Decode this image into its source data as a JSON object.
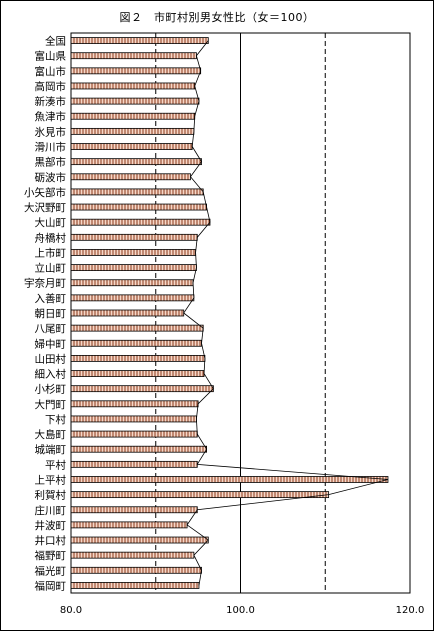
{
  "chart_data": {
    "type": "bar",
    "orientation": "horizontal",
    "title": "図２　市町村別男女性比（女＝100）",
    "categories": [
      "全国",
      "富山県",
      "富山市",
      "高岡市",
      "新湊市",
      "魚津市",
      "氷見市",
      "滑川市",
      "黒部市",
      "砺波市",
      "小矢部市",
      "大沢野町",
      "大山町",
      "舟橋村",
      "上市町",
      "立山町",
      "宇奈月町",
      "入善町",
      "朝日町",
      "八尾町",
      "婦中町",
      "山田村",
      "細入村",
      "小杉町",
      "大門町",
      "下村",
      "大島町",
      "城端町",
      "平村",
      "上平村",
      "利賀村",
      "庄川町",
      "井波町",
      "井口村",
      "福野町",
      "福光町",
      "福岡町"
    ],
    "values": [
      96.2,
      94.8,
      95.3,
      94.6,
      95.1,
      94.6,
      94.5,
      94.3,
      95.4,
      94.1,
      95.6,
      96.0,
      96.4,
      94.9,
      94.7,
      94.8,
      94.4,
      94.5,
      93.3,
      95.6,
      95.4,
      95.8,
      95.7,
      96.8,
      95.0,
      94.8,
      94.9,
      96.0,
      94.9,
      117.4,
      110.4,
      94.9,
      93.7,
      96.2,
      94.5,
      95.4,
      95.1
    ],
    "xlim": [
      80,
      120
    ],
    "xticks": [
      "80.0",
      "100.0",
      "120.0"
    ],
    "reference_lines": [
      90,
      100,
      110
    ],
    "grid": false,
    "legend": "none"
  }
}
